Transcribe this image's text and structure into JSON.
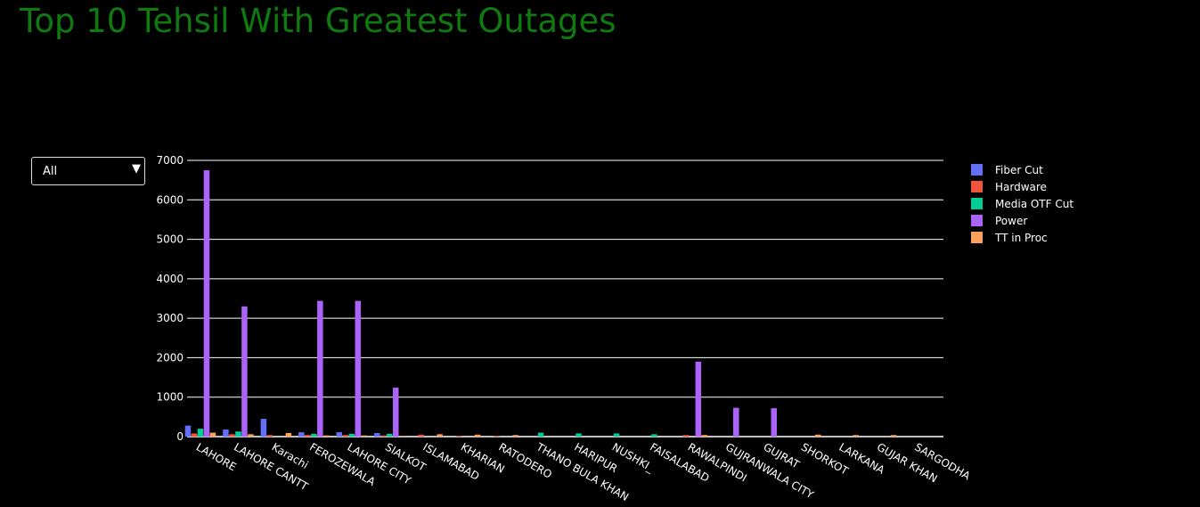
{
  "page": {
    "title": "Top 10 Tehsil With Greatest Outages"
  },
  "filter": {
    "selected": "All",
    "arrow_icon": "triangle-down-icon"
  },
  "colors": {
    "Fiber Cut": "#636efa",
    "Hardware": "#ef553b",
    "Media OTF Cut": "#00cc96",
    "Power": "#ab63fa",
    "TT in Proc": "#ffa15a"
  },
  "chart_data": {
    "type": "bar",
    "title": "Top 10 Tehsil With Greatest Outages",
    "xlabel": "",
    "ylabel": "",
    "ylim": [
      0,
      7000
    ],
    "yticks": [
      0,
      1000,
      2000,
      3000,
      4000,
      5000,
      6000,
      7000
    ],
    "grid": true,
    "legend_position": "right",
    "categories": [
      "LAHORE",
      "LAHORE CANTT",
      "Karachi",
      "FEROZEWALA",
      "LAHORE CITY",
      "SIALKOT",
      "ISLAMABAD",
      "KHARIAN",
      "RATODERO",
      "THANO BULA KHAN",
      "HARIPUR",
      "NUSHKI_",
      "FAISALABAD",
      "RAWALPINDI",
      "GUJRANWALA CITY",
      "GUJRAT",
      "SHORKOT",
      "LARKANA",
      "GUJAR KHAN",
      "SARGODHA"
    ],
    "series": [
      {
        "name": "Fiber Cut",
        "values": [
          280,
          180,
          450,
          110,
          110,
          90,
          0,
          0,
          0,
          0,
          0,
          0,
          0,
          0,
          0,
          0,
          0,
          0,
          0,
          0
        ]
      },
      {
        "name": "Hardware",
        "values": [
          80,
          60,
          40,
          40,
          40,
          30,
          50,
          20,
          20,
          0,
          0,
          0,
          0,
          40,
          0,
          0,
          0,
          0,
          0,
          0
        ]
      },
      {
        "name": "Media OTF Cut",
        "values": [
          200,
          130,
          0,
          70,
          70,
          70,
          0,
          0,
          0,
          100,
          80,
          80,
          60,
          0,
          0,
          0,
          0,
          0,
          0,
          0
        ]
      },
      {
        "name": "Power",
        "values": [
          6750,
          3300,
          0,
          3440,
          3440,
          1240,
          0,
          0,
          0,
          0,
          0,
          0,
          0,
          1900,
          730,
          720,
          0,
          0,
          0,
          0
        ]
      },
      {
        "name": "TT in Proc",
        "values": [
          100,
          60,
          90,
          30,
          30,
          20,
          60,
          50,
          40,
          0,
          0,
          0,
          0,
          40,
          0,
          0,
          50,
          40,
          40,
          0
        ]
      }
    ]
  }
}
